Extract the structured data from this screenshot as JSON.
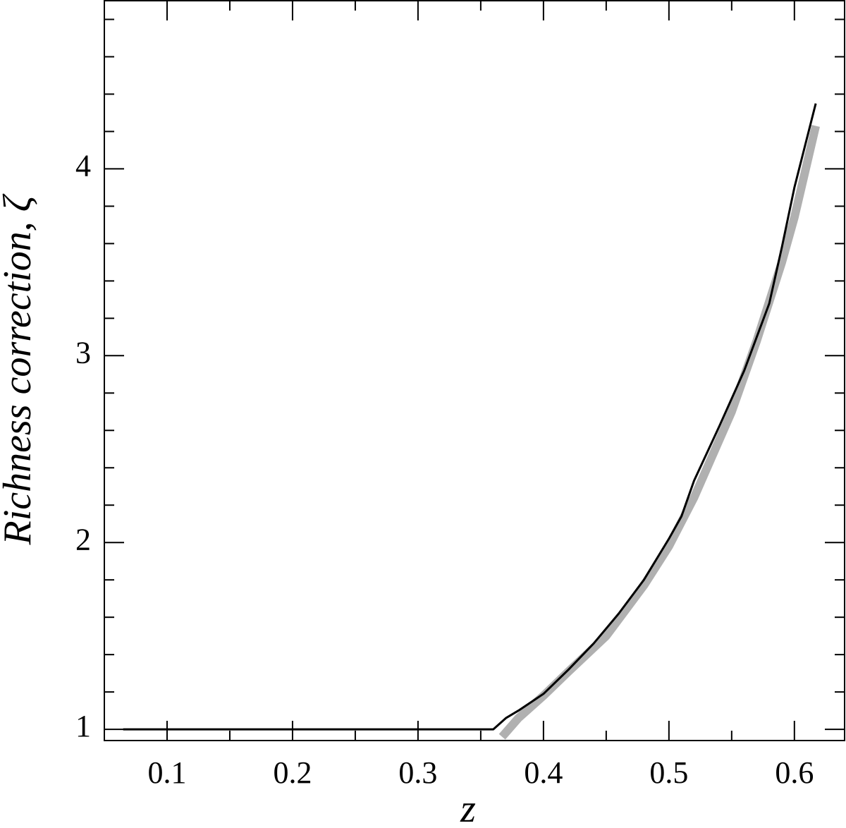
{
  "chart_data": {
    "type": "line",
    "xlabel": "z",
    "ylabel": "Richness correction, ζ",
    "xlim": [
      0.05,
      0.64
    ],
    "ylim": [
      0.94,
      4.9
    ],
    "xticks": [
      0.1,
      0.2,
      0.3,
      0.4,
      0.5,
      0.6
    ],
    "yticks": [
      1,
      2,
      3,
      4
    ],
    "xminorticks": [
      0.15,
      0.25,
      0.35,
      0.45,
      0.55
    ],
    "yminorticks": [
      1.2,
      1.4,
      1.6,
      1.8,
      2.2,
      2.4,
      2.6,
      2.8,
      3.2,
      3.4,
      3.6,
      3.8,
      4.2,
      4.4,
      4.6,
      4.8
    ],
    "series": [
      {
        "color": "#b0b0b0",
        "width": 12,
        "x": [
          0.367,
          0.38,
          0.4,
          0.42,
          0.45,
          0.48,
          0.5,
          0.52,
          0.55,
          0.57,
          0.59,
          0.6,
          0.617
        ],
        "values": [
          0.96,
          1.06,
          1.18,
          1.31,
          1.5,
          1.77,
          1.98,
          2.24,
          2.7,
          3.08,
          3.5,
          3.74,
          4.23
        ]
      },
      {
        "color": "#000000",
        "width": 3,
        "x": [
          0.065,
          0.36,
          0.37,
          0.38,
          0.4,
          0.42,
          0.44,
          0.46,
          0.48,
          0.5,
          0.51,
          0.52,
          0.54,
          0.56,
          0.58,
          0.59,
          0.6,
          0.617
        ],
        "values": [
          1.0,
          1.0,
          1.06,
          1.1,
          1.19,
          1.32,
          1.46,
          1.62,
          1.8,
          2.02,
          2.14,
          2.33,
          2.62,
          2.92,
          3.28,
          3.58,
          3.9,
          4.35
        ]
      }
    ]
  }
}
